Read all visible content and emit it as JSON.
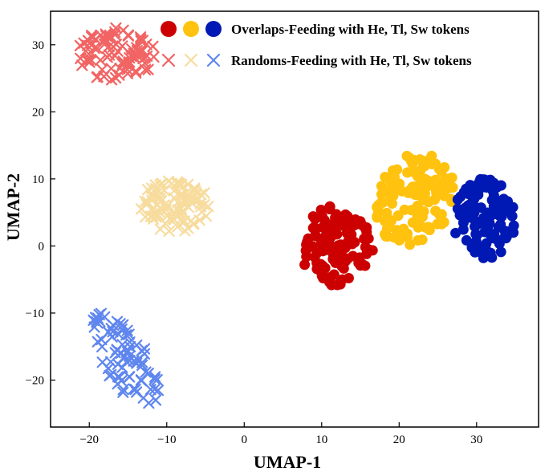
{
  "chart_data": {
    "type": "scatter",
    "xlabel": "UMAP-1",
    "ylabel": "UMAP-2",
    "xlim": [
      -25,
      38
    ],
    "ylim": [
      -27,
      35
    ],
    "xticks": [
      -20,
      -10,
      0,
      10,
      20,
      30
    ],
    "yticks": [
      -20,
      -10,
      0,
      10,
      20,
      30
    ],
    "tick_labels_x": [
      "−20",
      "−10",
      "0",
      "10",
      "20",
      "30"
    ],
    "tick_labels_y": [
      "−20",
      "−10",
      "0",
      "10",
      "20",
      "30"
    ],
    "grid": false,
    "legend": {
      "placement": "top-right",
      "entries": [
        {
          "label": "Overlaps-Feeding with He, Tl, Sw tokens",
          "marker": "circle",
          "colors": [
            "#cc0000",
            "#ffc20e",
            "#0018b4"
          ]
        },
        {
          "label": "Randoms-Feeding with He, Tl, Sw tokens",
          "marker": "x",
          "colors": [
            "#f26464",
            "#f7dc9e",
            "#5f86ee"
          ]
        }
      ]
    },
    "series": [
      {
        "name": "Overlaps-He",
        "marker": "circle",
        "color": "#cc0000",
        "center": [
          12,
          0
        ],
        "spread": [
          5,
          6
        ],
        "count": 110,
        "seed": 11
      },
      {
        "name": "Overlaps-Tl",
        "marker": "circle",
        "color": "#ffc20e",
        "center": [
          22,
          7
        ],
        "spread": [
          5,
          7
        ],
        "count": 130,
        "seed": 23
      },
      {
        "name": "Overlaps-Sw",
        "marker": "circle",
        "color": "#0018b4",
        "center": [
          31,
          4
        ],
        "spread": [
          4,
          6
        ],
        "count": 110,
        "seed": 37
      },
      {
        "name": "Randoms-He",
        "marker": "x",
        "color": "#f26464",
        "center": [
          -16.5,
          28.5
        ],
        "spread": [
          5,
          4
        ],
        "count": 90,
        "seed": 41
      },
      {
        "name": "Randoms-Tl",
        "marker": "x",
        "color": "#f7dc9e",
        "center": [
          -9,
          6
        ],
        "spread": [
          4.5,
          4
        ],
        "count": 100,
        "seed": 53
      },
      {
        "name": "Randoms-Sw",
        "marker": "x",
        "color": "#5f86ee",
        "center": [
          -15.5,
          -17
        ],
        "spread": [
          3.5,
          7
        ],
        "count": 80,
        "seed": 67
      }
    ]
  }
}
